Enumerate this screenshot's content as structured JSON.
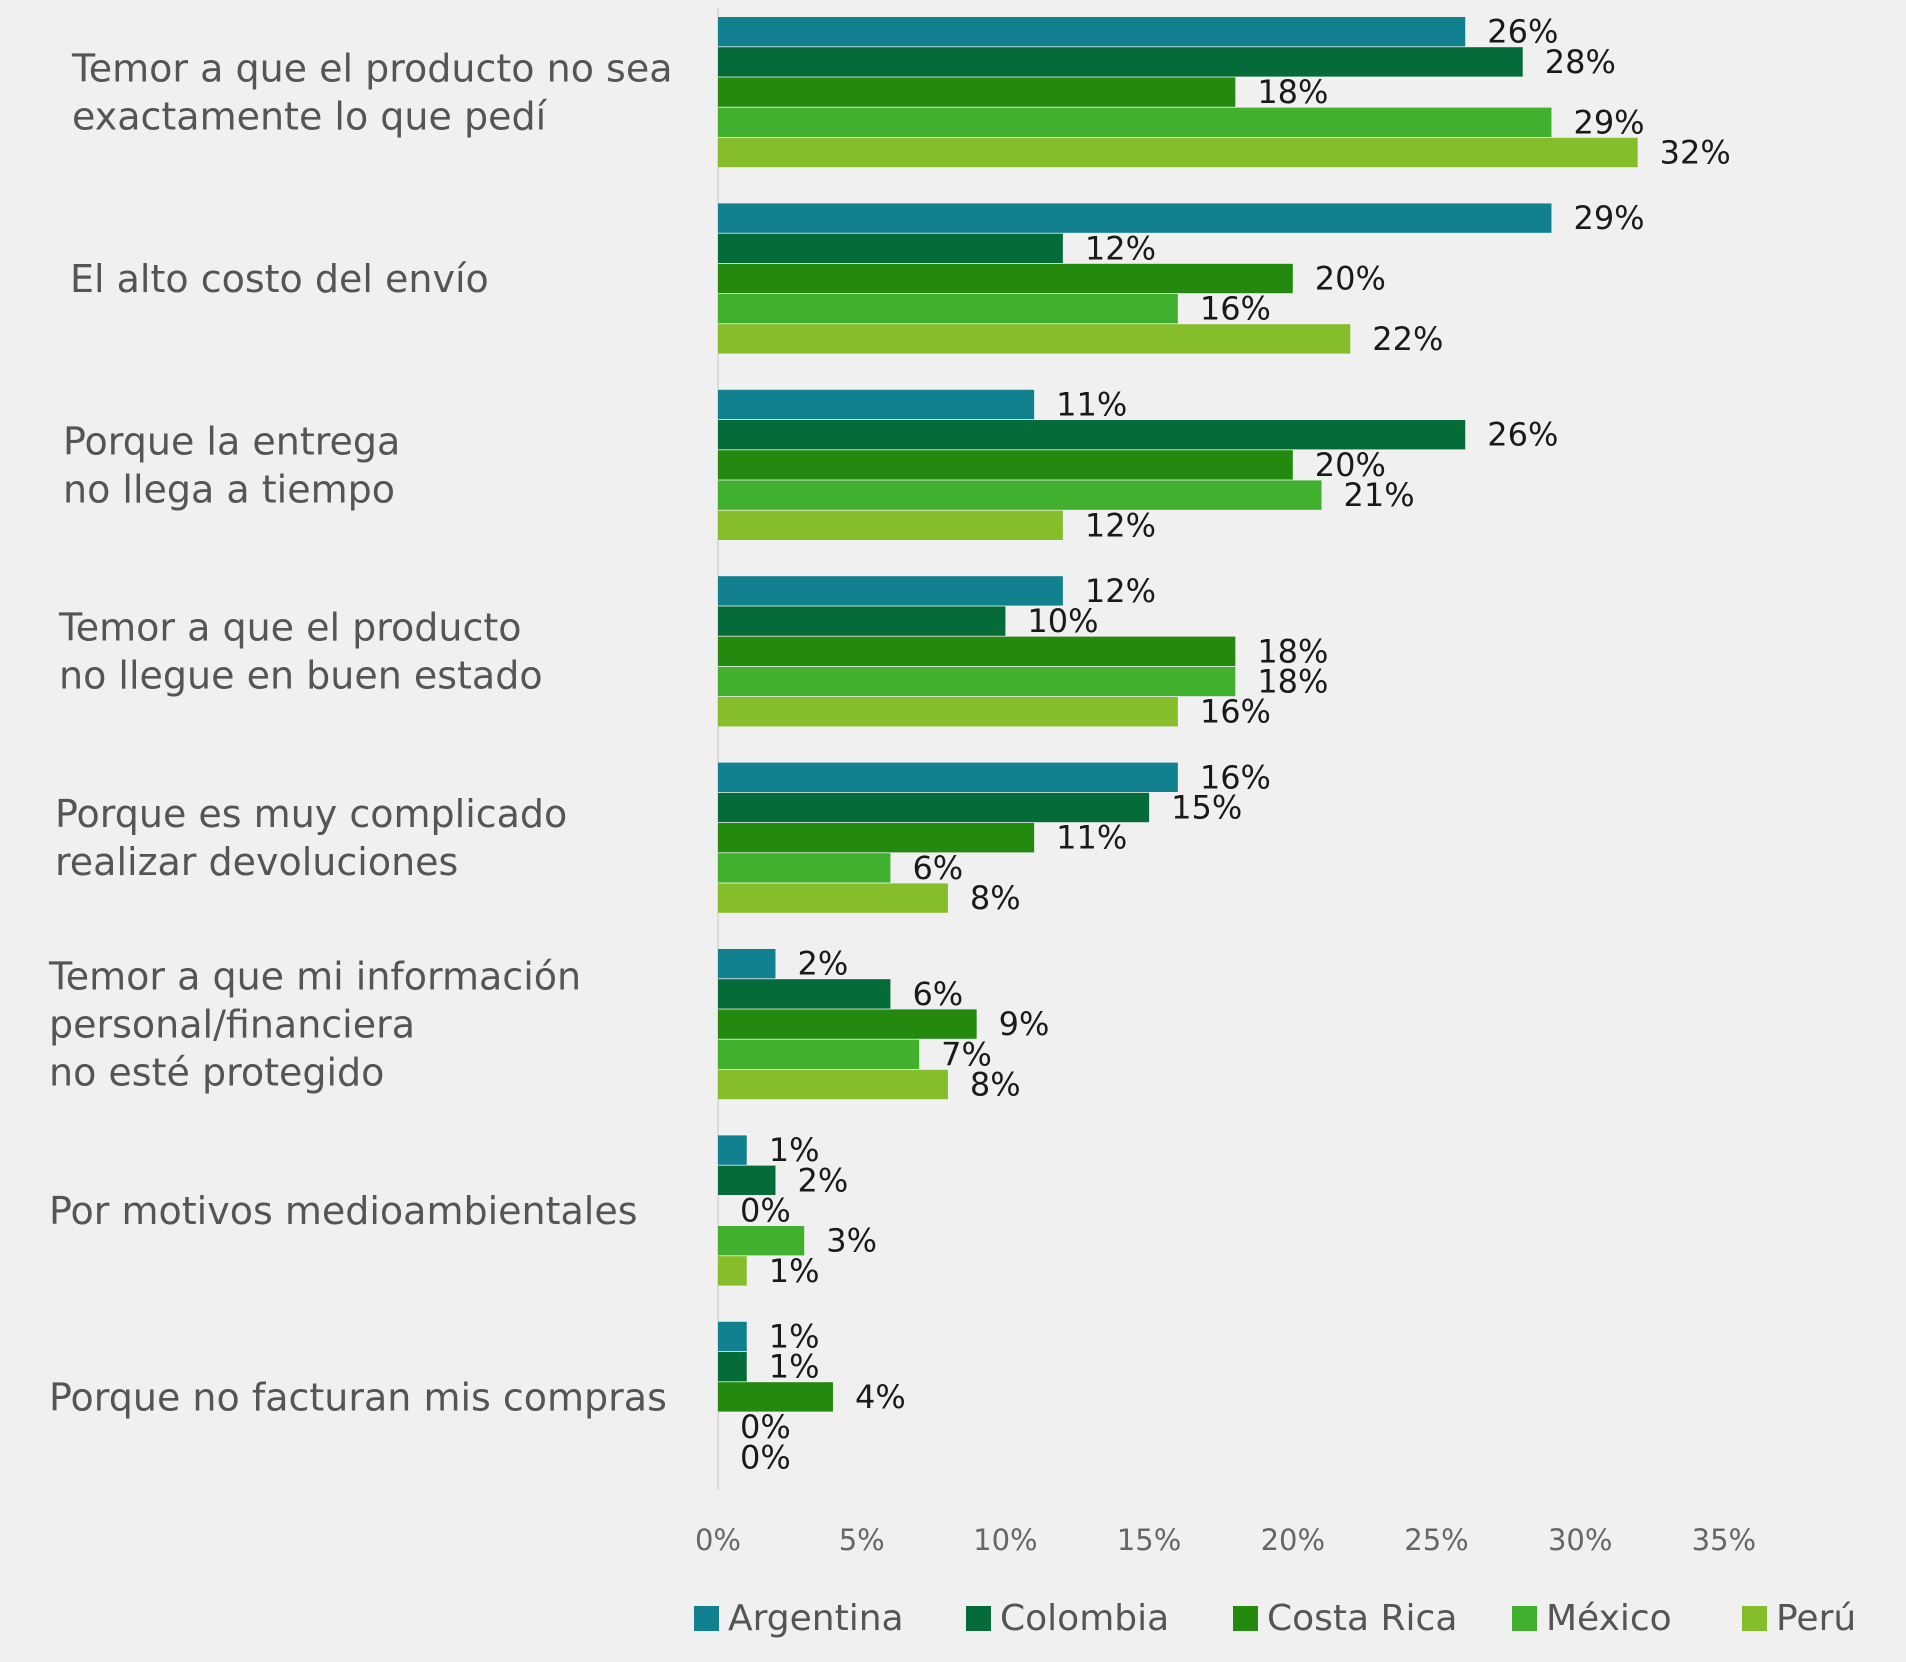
{
  "chart_data": {
    "type": "bar",
    "orientation": "horizontal",
    "title": "",
    "xlabel": "",
    "ylabel": "",
    "xlim": [
      0,
      35
    ],
    "x_ticks": [
      0,
      5,
      10,
      15,
      20,
      25,
      30,
      35
    ],
    "x_tick_labels": [
      "0%",
      "5%",
      "10%",
      "15%",
      "20%",
      "25%",
      "30%",
      "35%"
    ],
    "grid": false,
    "legend_position": "bottom",
    "categories": [
      [
        "Temor a que el producto no sea",
        "exactamente lo que pedí"
      ],
      [
        "El alto costo del envío"
      ],
      [
        "Porque la entrega",
        "no llega a tiempo"
      ],
      [
        "Temor a que el producto",
        "no llegue en buen estado"
      ],
      [
        "Porque es muy complicado",
        "realizar devoluciones"
      ],
      [
        "Temor a que mi información",
        " personal/financiera",
        "no esté protegido"
      ],
      [
        "Por motivos medioambientales"
      ],
      [
        "Porque no facturan mis compras"
      ]
    ],
    "series": [
      {
        "name": "Argentina",
        "color": "#11808f",
        "values": [
          26,
          29,
          11,
          12,
          16,
          2,
          1,
          1
        ],
        "labels": [
          "26%",
          "29%",
          "11%",
          "12%",
          "16%",
          "2%",
          "1%",
          "1%"
        ]
      },
      {
        "name": "Colombia",
        "color": "#046b39",
        "values": [
          28,
          12,
          26,
          10,
          15,
          6,
          2,
          1
        ],
        "labels": [
          "28%",
          "12%",
          "26%",
          "10%",
          "15%",
          "6%",
          "2%",
          "1%"
        ]
      },
      {
        "name": "Costa Rica",
        "color": "#23890f",
        "values": [
          18,
          20,
          20,
          18,
          11,
          9,
          0,
          4
        ],
        "labels": [
          "18%",
          "20%",
          "20%",
          "18%",
          "11%",
          "9%",
          "0%",
          "4%"
        ]
      },
      {
        "name": "México",
        "color": "#41b02f",
        "values": [
          29,
          16,
          21,
          18,
          6,
          7,
          3,
          0
        ],
        "labels": [
          "29%",
          "16%",
          "21%",
          "18%",
          "6%",
          "7%",
          "3%",
          "0%"
        ]
      },
      {
        "name": "Perú",
        "color": "#86bd2b",
        "values": [
          32,
          22,
          12,
          16,
          8,
          8,
          1,
          0
        ],
        "labels": [
          "32%",
          "22%",
          "12%",
          "16%",
          "8%",
          "8%",
          "1%",
          "0%"
        ]
      }
    ]
  }
}
